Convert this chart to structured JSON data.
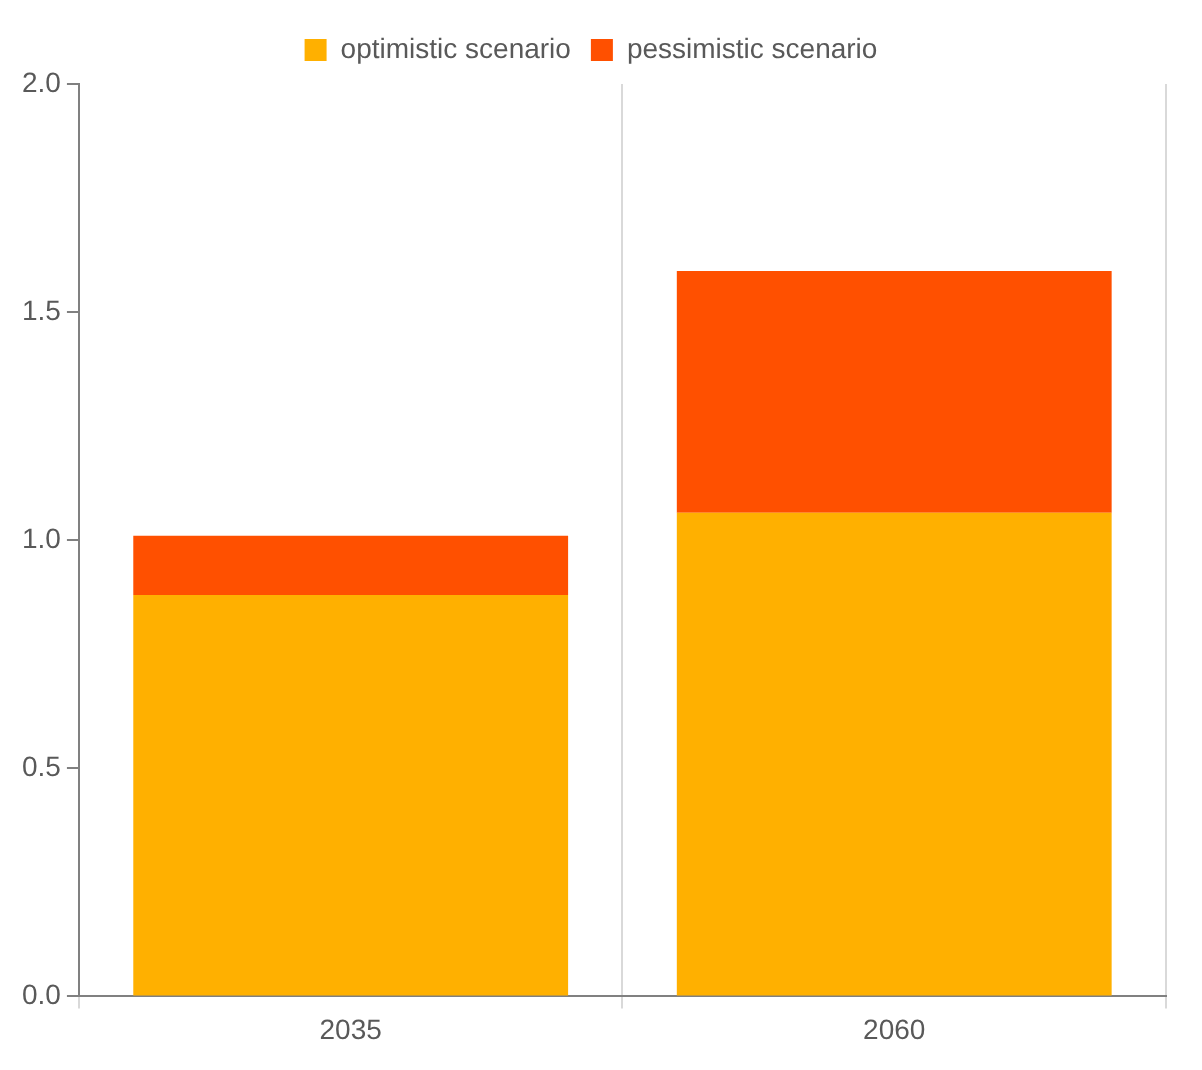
{
  "chart_data": {
    "type": "bar",
    "stacked": true,
    "categories": [
      "2035",
      "2060"
    ],
    "series": [
      {
        "name": "optimistic scenario",
        "color": "#ffb000",
        "values": [
          0.88,
          1.06
        ]
      },
      {
        "name": "pessimistic scenario",
        "color": "#ff5000",
        "values": [
          0.13,
          0.53
        ]
      }
    ],
    "ylim": [
      0,
      2
    ],
    "yticks": [
      {
        "value": 0,
        "label": "0.0"
      },
      {
        "value": 0.5,
        "label": "0.5"
      },
      {
        "value": 1,
        "label": "1.0"
      },
      {
        "value": 1.5,
        "label": "1.5"
      },
      {
        "value": 2,
        "label": "2.0"
      }
    ],
    "grid": "x",
    "legend": "top"
  }
}
